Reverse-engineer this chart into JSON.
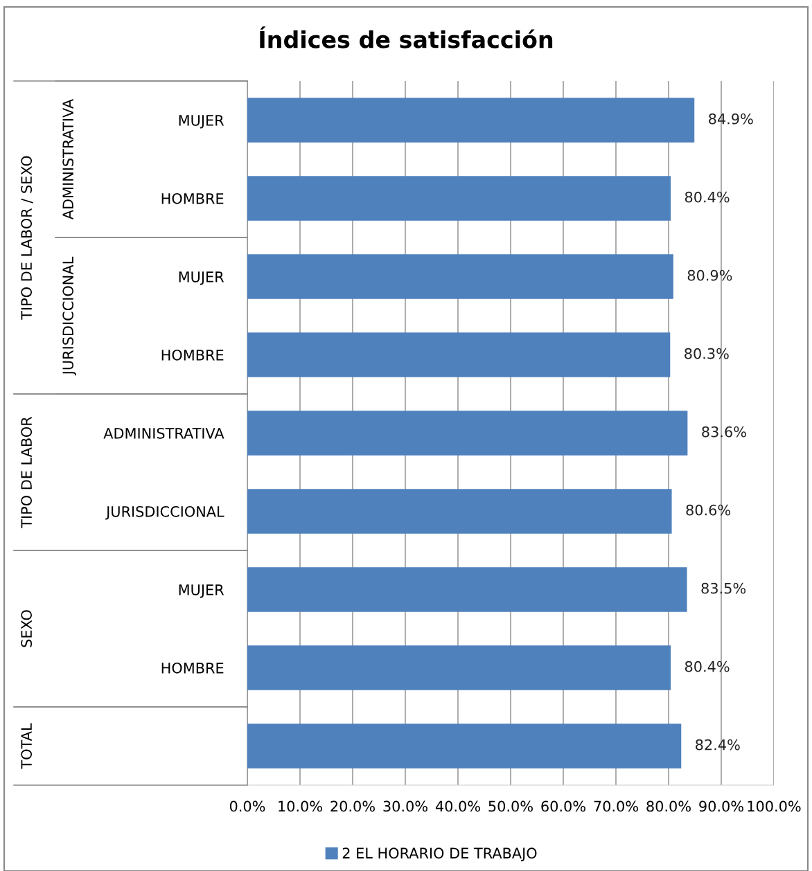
{
  "chart_data": {
    "type": "bar",
    "orientation": "horizontal",
    "title": "Índices de satisfacción",
    "categories": [
      "MUJER",
      "HOMBRE",
      "MUJER",
      "HOMBRE",
      "ADMINISTRATIVA",
      "JURISDICCIONAL",
      "MUJER",
      "HOMBRE",
      null
    ],
    "series": [
      {
        "name": "2 EL HORARIO DE TRABAJO",
        "color": "#4f81bd",
        "values": [
          84.9,
          80.4,
          80.9,
          80.3,
          83.6,
          80.6,
          83.5,
          80.4,
          82.4
        ],
        "value_labels": [
          "84.9%",
          "80.4%",
          "80.9%",
          "80.3%",
          "83.6%",
          "80.6%",
          "83.5%",
          "80.4%",
          "82.4%"
        ]
      }
    ],
    "xlim": [
      0,
      100
    ],
    "xticks": [
      {
        "value": 0,
        "label": "0.0%"
      },
      {
        "value": 10,
        "label": "10.0%"
      },
      {
        "value": 20,
        "label": "20.0%"
      },
      {
        "value": 30,
        "label": "30.0%"
      },
      {
        "value": 40,
        "label": "40.0%"
      },
      {
        "value": 50,
        "label": "50.0%"
      },
      {
        "value": 60,
        "label": "60.0%"
      },
      {
        "value": 70,
        "label": "70.0%"
      },
      {
        "value": 80,
        "label": "80.0%"
      },
      {
        "value": 90,
        "label": "90.0%"
      },
      {
        "value": 100,
        "label": "100.0%"
      }
    ],
    "annotations": [
      "TIPO DE LABOR / SEXO",
      "ADMINISTRATIVA",
      "JURISDICCIONAL",
      "TIPO DE LABOR",
      "SEXO",
      "TOTAL"
    ],
    "grid": "x",
    "legend": "bottom"
  }
}
